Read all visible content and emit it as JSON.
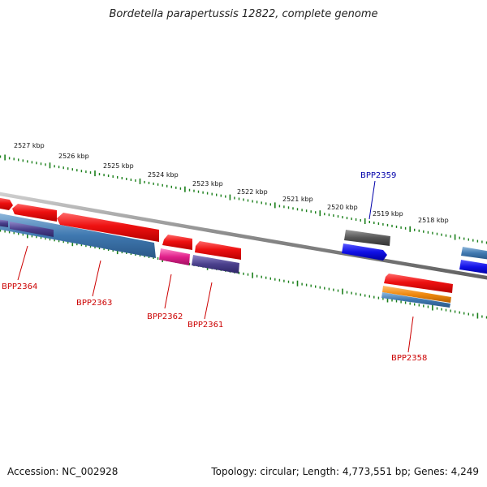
{
  "title": "Bordetella parapertussis 12822, complete genome",
  "footer": {
    "accession": "Accession: NC_002928",
    "stats": "Topology: circular; Length: 4,773,551 bp; Genes: 4,249"
  },
  "colors": {
    "tick": "#1a7f1a",
    "backbone": "#8a8a8a",
    "label_red": "#cc0000",
    "label_blue": "#0000aa"
  },
  "scale_labels": [
    "2527 kbp",
    "2526 kbp",
    "2525 kbp",
    "2524 kbp",
    "2523 kbp",
    "2522 kbp",
    "2521 kbp",
    "2520 kbp",
    "2519 kbp",
    "2518 kbp"
  ],
  "gene_labels": [
    {
      "text": "BPP2364",
      "color": "red"
    },
    {
      "text": "BPP2363",
      "color": "red"
    },
    {
      "text": "BPP2362",
      "color": "red"
    },
    {
      "text": "BPP2361",
      "color": "red"
    },
    {
      "text": "BPP2359",
      "color": "blue"
    },
    {
      "text": "BPP2358",
      "color": "red"
    }
  ],
  "features": [
    {
      "name": "cds-forward",
      "color": "#e8141a"
    },
    {
      "name": "cds-forward-gray",
      "color": "#5a5a5a"
    },
    {
      "name": "cds-steelblue",
      "color": "#3f78b0"
    },
    {
      "name": "cds-purple",
      "color": "#4a3f8c"
    },
    {
      "name": "cds-magenta",
      "color": "#e0208a"
    },
    {
      "name": "cds-orange",
      "color": "#f08a10"
    },
    {
      "name": "cds-blue",
      "color": "#1010e0"
    }
  ]
}
